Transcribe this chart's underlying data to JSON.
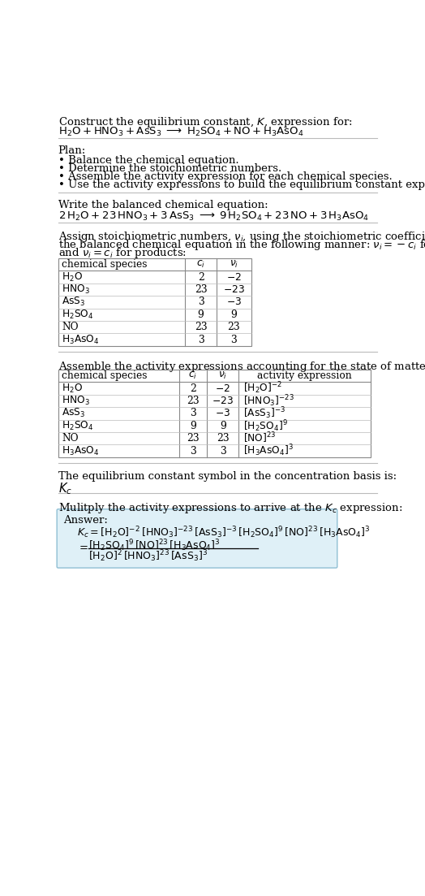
{
  "title_line1": "Construct the equilibrium constant, $K$, expression for:",
  "title_line2": "$\\mathrm{H_2O + HNO_3 + AsS_3 \\;\\longrightarrow\\; H_2SO_4 + NO + H_3AsO_4}$",
  "plan_header": "Plan:",
  "plan_items": [
    "• Balance the chemical equation.",
    "• Determine the stoichiometric numbers.",
    "• Assemble the activity expression for each chemical species.",
    "• Use the activity expressions to build the equilibrium constant expression."
  ],
  "balanced_header": "Write the balanced chemical equation:",
  "balanced_eq": "$\\mathrm{2\\,H_2O + 23\\,HNO_3 + 3\\,AsS_3 \\;\\longrightarrow\\; 9\\,H_2SO_4 + 23\\,NO + 3\\,H_3AsO_4}$",
  "stoich_intro_lines": [
    "Assign stoichiometric numbers, $\\nu_i$, using the stoichiometric coefficients, $c_i$, from",
    "the balanced chemical equation in the following manner: $\\nu_i = -c_i$ for reactants",
    "and $\\nu_i = c_i$ for products:"
  ],
  "table1_headers": [
    "chemical species",
    "$c_i$",
    "$\\nu_i$"
  ],
  "table1_rows": [
    [
      "$\\mathrm{H_2O}$",
      "2",
      "$-2$"
    ],
    [
      "$\\mathrm{HNO_3}$",
      "23",
      "$-23$"
    ],
    [
      "$\\mathrm{AsS_3}$",
      "3",
      "$-3$"
    ],
    [
      "$\\mathrm{H_2SO_4}$",
      "9",
      "9"
    ],
    [
      "NO",
      "23",
      "23"
    ],
    [
      "$\\mathrm{H_3AsO_4}$",
      "3",
      "3"
    ]
  ],
  "activity_intro": "Assemble the activity expressions accounting for the state of matter and $\\nu_i$:",
  "table2_headers": [
    "chemical species",
    "$c_i$",
    "$\\nu_i$",
    "activity expression"
  ],
  "table2_rows": [
    [
      "$\\mathrm{H_2O}$",
      "2",
      "$-2$",
      "$[\\mathrm{H_2O}]^{-2}$"
    ],
    [
      "$\\mathrm{HNO_3}$",
      "23",
      "$-23$",
      "$[\\mathrm{HNO_3}]^{-23}$"
    ],
    [
      "$\\mathrm{AsS_3}$",
      "3",
      "$-3$",
      "$[\\mathrm{AsS_3}]^{-3}$"
    ],
    [
      "$\\mathrm{H_2SO_4}$",
      "9",
      "9",
      "$[\\mathrm{H_2SO_4}]^{9}$"
    ],
    [
      "NO",
      "23",
      "23",
      "$[\\mathrm{NO}]^{23}$"
    ],
    [
      "$\\mathrm{H_3AsO_4}$",
      "3",
      "3",
      "$[\\mathrm{H_3AsO_4}]^{3}$"
    ]
  ],
  "kc_header": "The equilibrium constant symbol in the concentration basis is:",
  "kc_symbol": "$K_c$",
  "multiply_header": "Mulitply the activity expressions to arrive at the $K_c$ expression:",
  "answer_label": "Answer:",
  "answer_line1": "$K_c = [\\mathrm{H_2O}]^{-2}\\,[\\mathrm{HNO_3}]^{-23}\\,[\\mathrm{AsS_3}]^{-3}\\,[\\mathrm{H_2SO_4}]^{9}\\,[\\mathrm{NO}]^{23}\\,[\\mathrm{H_3AsO_4}]^{3}$",
  "answer_eq_sign": "$= $",
  "answer_line2_num": "$[\\mathrm{H_2SO_4}]^{9}\\,[\\mathrm{NO}]^{23}\\,[\\mathrm{H_3AsO_4}]^{3}$",
  "answer_line2_den": "$[\\mathrm{H_2O}]^{2}\\,[\\mathrm{HNO_3}]^{23}\\,[\\mathrm{AsS_3}]^{3}$",
  "bg_color": "#ffffff",
  "text_color": "#000000",
  "answer_box_color": "#dff0f7",
  "answer_box_border": "#90bfd4",
  "font_size": 9.5,
  "small_font": 8.8
}
